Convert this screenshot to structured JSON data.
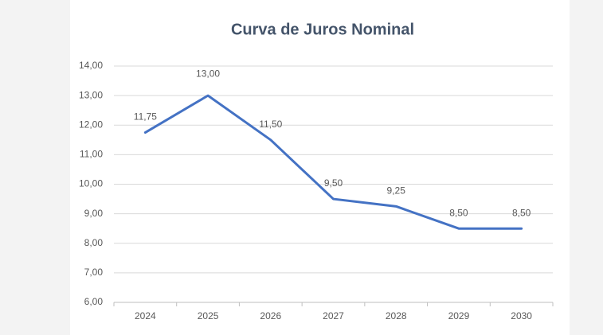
{
  "chart_data": {
    "type": "line",
    "title": "Curva de Juros Nominal",
    "categories": [
      "2024",
      "2025",
      "2026",
      "2027",
      "2028",
      "2029",
      "2030"
    ],
    "values": [
      11.75,
      13,
      11.5,
      9.5,
      9.25,
      8.5,
      8.5
    ],
    "value_labels": [
      "11,75",
      "13,00",
      "11,50",
      "9,50",
      "9,25",
      "8,50",
      "8,50"
    ],
    "color": "#4472c4",
    "ylim": [
      6,
      14
    ],
    "yticks": [
      {
        "value": 6,
        "label": "6,00"
      },
      {
        "value": 7,
        "label": "7,00"
      },
      {
        "value": 8,
        "label": "8,00"
      },
      {
        "value": 9,
        "label": "9,00"
      },
      {
        "value": 10,
        "label": "10,00"
      },
      {
        "value": 11,
        "label": "11,00"
      },
      {
        "value": 12,
        "label": "12,00"
      },
      {
        "value": 13,
        "label": "13,00"
      },
      {
        "value": 14,
        "label": "14,00"
      }
    ],
    "grid": true
  }
}
